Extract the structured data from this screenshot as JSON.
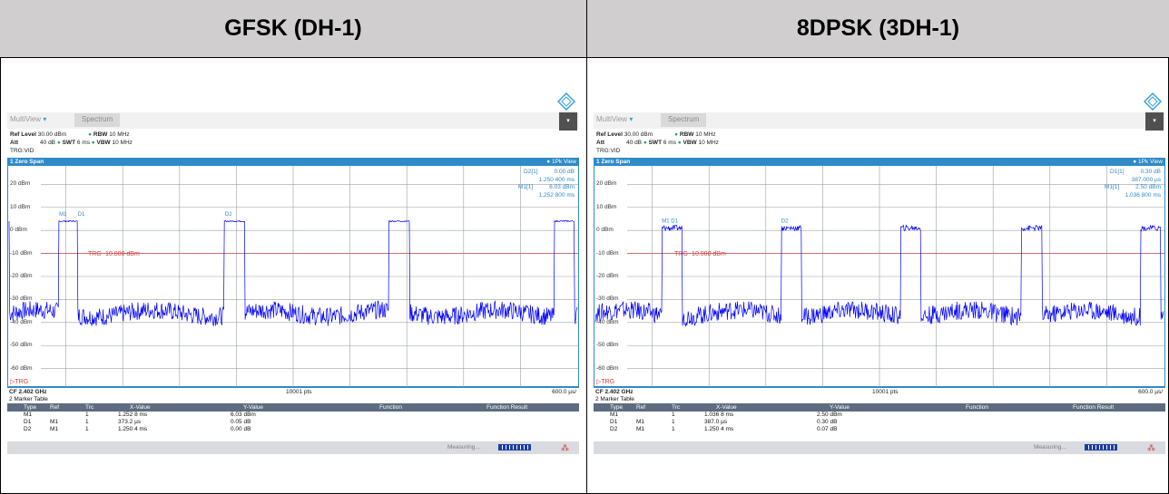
{
  "headers": {
    "left": "GFSK (DH-1)",
    "right": "8DPSK (3DH-1)"
  },
  "panels": [
    {
      "tabs": {
        "multiview": "MultiView",
        "spectrum": "Spectrum"
      },
      "params": {
        "ref_level_label": "Ref Level",
        "ref_level": "30.00 dBm",
        "att_label": "Att",
        "att": "40 dB",
        "swt_label": "SWT",
        "swt": "6 ms",
        "rbw_label": "RBW",
        "rbw": "10 MHz",
        "vbw_label": "VBW",
        "vbw": "10 MHz",
        "trig": "TRG:VID"
      },
      "trace_header": {
        "title": "1 Zero Span",
        "view": "1Pk View"
      },
      "marker_readouts": [
        {
          "label": "D2[1]",
          "value": "0.00 dB"
        },
        {
          "label": "",
          "value": "1.250 400 ms"
        },
        {
          "label": "M1[1]",
          "value": "6.03 dBm"
        },
        {
          "label": "",
          "value": "1.252 800 ms"
        }
      ],
      "footer": {
        "cf": "CF 2.402 GHz",
        "pts": "10001 pts",
        "div": "600.0 µs/"
      },
      "marker_table": {
        "title": "2 Marker Table",
        "columns": [
          "Type",
          "Ref",
          "Trc",
          "X-Value",
          "Y-Value",
          "Function",
          "Function Result"
        ],
        "rows": [
          [
            "M1",
            "",
            "1",
            "1.252 8 ms",
            "6.03 dBm",
            "",
            ""
          ],
          [
            "D1",
            "M1",
            "1",
            "373.2 µs",
            "0.05 dB",
            "",
            ""
          ],
          [
            "D2",
            "M1",
            "1",
            "1.250 4 ms",
            "0.00 dB",
            "",
            ""
          ]
        ]
      },
      "status": "Measuring...",
      "chart_data": {
        "type": "line",
        "xlabel": "",
        "ylabel": "",
        "y_ticks": [
          "20 dBm",
          "10 dBm",
          "0 dBm",
          "-10 dBm",
          "-20 dBm",
          "-30 dBm",
          "-40 dBm",
          "-50 dBm",
          "-60 dBm"
        ],
        "ylim": [
          -68,
          28
        ],
        "x_divisions": 10,
        "threshold": {
          "label": "TRG -10.000 dBm",
          "value": -10
        },
        "trigger_label": "TRG",
        "marker_labels": [
          {
            "label": "M1",
            "x": 0.88
          },
          {
            "label": "D1",
            "x": 1.21
          },
          {
            "label": "D2",
            "x": 3.8
          }
        ],
        "series": [
          {
            "color": "#0000ff",
            "segments_high": [
              [
                -0.2,
                0.0
              ],
              [
                0.87,
                1.21
              ],
              [
                3.78,
                4.15
              ],
              [
                6.68,
                7.05
              ],
              [
                9.6,
                9.95
              ]
            ],
            "high_level": 4,
            "low_level": -36
          }
        ]
      }
    },
    {
      "tabs": {
        "multiview": "MultiView",
        "spectrum": "Spectrum"
      },
      "params": {
        "ref_level_label": "Ref Level",
        "ref_level": "30.00 dBm",
        "att_label": "Att",
        "att": "40 dB",
        "swt_label": "SWT",
        "swt": "6 ms",
        "rbw_label": "RBW",
        "rbw": "10 MHz",
        "vbw_label": "VBW",
        "vbw": "10 MHz",
        "trig": "TRG:VID"
      },
      "trace_header": {
        "title": "1 Zero Span",
        "view": "1Pk View"
      },
      "marker_readouts": [
        {
          "label": "D1[1]",
          "value": "0.30 dB"
        },
        {
          "label": "",
          "value": "387.000 µs"
        },
        {
          "label": "M1[1]",
          "value": "2.50 dBm"
        },
        {
          "label": "",
          "value": "1.036 800 ms"
        }
      ],
      "footer": {
        "cf": "CF 2.402 GHz",
        "pts": "10001 pts",
        "div": "600.0 µs/"
      },
      "marker_table": {
        "title": "2 Marker Table",
        "columns": [
          "Type",
          "Ref",
          "Trc",
          "X-Value",
          "Y-Value",
          "Function",
          "Function Result"
        ],
        "rows": [
          [
            "M1",
            "",
            "1",
            "1.036 8 ms",
            "2.50 dBm",
            "",
            ""
          ],
          [
            "D1",
            "M1",
            "1",
            "387.0 µs",
            "0.30 dB",
            "",
            ""
          ],
          [
            "D2",
            "M1",
            "1",
            "1.250 4 ms",
            "0.07 dB",
            "",
            ""
          ]
        ]
      },
      "status": "Measuring...",
      "chart_data": {
        "type": "line",
        "xlabel": "",
        "ylabel": "",
        "y_ticks": [
          "20 dBm",
          "10 dBm",
          "0 dBm",
          "-10 dBm",
          "-20 dBm",
          "-30 dBm",
          "-40 dBm",
          "-50 dBm",
          "-60 dBm"
        ],
        "ylim": [
          -68,
          28
        ],
        "x_divisions": 10,
        "threshold": {
          "label": "TRG -10.000 dBm",
          "value": -10
        },
        "trigger_label": "TRG",
        "marker_labels": [
          {
            "label": "M1",
            "x": 1.17
          },
          {
            "label": "D1",
            "x": 1.33
          },
          {
            "label": "D2",
            "x": 3.27
          }
        ],
        "series": [
          {
            "color": "#0000ff",
            "segments_high": [
              [
                1.17,
                1.53
              ],
              [
                3.27,
                3.63
              ],
              [
                5.37,
                5.73
              ],
              [
                7.5,
                7.86
              ],
              [
                9.6,
                9.95
              ]
            ],
            "high_level": 1,
            "low_level": -36
          }
        ]
      }
    }
  ]
}
